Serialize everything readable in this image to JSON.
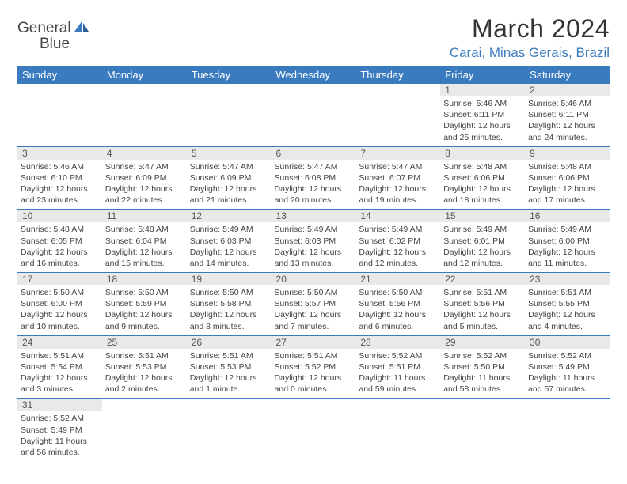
{
  "brand": {
    "name_a": "General",
    "name_b": "Blue"
  },
  "title": "March 2024",
  "location": "Carai, Minas Gerais, Brazil",
  "colors": {
    "header_bg": "#3a7bbf",
    "header_text": "#ffffff",
    "grid_line": "#3a7bbf",
    "daynum_bg": "#e9e9e9",
    "text": "#444444",
    "logo_blue": "#3a7bbf"
  },
  "day_headers": [
    "Sunday",
    "Monday",
    "Tuesday",
    "Wednesday",
    "Thursday",
    "Friday",
    "Saturday"
  ],
  "weeks": [
    [
      null,
      null,
      null,
      null,
      null,
      {
        "n": "1",
        "sr": "Sunrise: 5:46 AM",
        "ss": "Sunset: 6:11 PM",
        "dl": "Daylight: 12 hours and 25 minutes."
      },
      {
        "n": "2",
        "sr": "Sunrise: 5:46 AM",
        "ss": "Sunset: 6:11 PM",
        "dl": "Daylight: 12 hours and 24 minutes."
      }
    ],
    [
      {
        "n": "3",
        "sr": "Sunrise: 5:46 AM",
        "ss": "Sunset: 6:10 PM",
        "dl": "Daylight: 12 hours and 23 minutes."
      },
      {
        "n": "4",
        "sr": "Sunrise: 5:47 AM",
        "ss": "Sunset: 6:09 PM",
        "dl": "Daylight: 12 hours and 22 minutes."
      },
      {
        "n": "5",
        "sr": "Sunrise: 5:47 AM",
        "ss": "Sunset: 6:09 PM",
        "dl": "Daylight: 12 hours and 21 minutes."
      },
      {
        "n": "6",
        "sr": "Sunrise: 5:47 AM",
        "ss": "Sunset: 6:08 PM",
        "dl": "Daylight: 12 hours and 20 minutes."
      },
      {
        "n": "7",
        "sr": "Sunrise: 5:47 AM",
        "ss": "Sunset: 6:07 PM",
        "dl": "Daylight: 12 hours and 19 minutes."
      },
      {
        "n": "8",
        "sr": "Sunrise: 5:48 AM",
        "ss": "Sunset: 6:06 PM",
        "dl": "Daylight: 12 hours and 18 minutes."
      },
      {
        "n": "9",
        "sr": "Sunrise: 5:48 AM",
        "ss": "Sunset: 6:06 PM",
        "dl": "Daylight: 12 hours and 17 minutes."
      }
    ],
    [
      {
        "n": "10",
        "sr": "Sunrise: 5:48 AM",
        "ss": "Sunset: 6:05 PM",
        "dl": "Daylight: 12 hours and 16 minutes."
      },
      {
        "n": "11",
        "sr": "Sunrise: 5:48 AM",
        "ss": "Sunset: 6:04 PM",
        "dl": "Daylight: 12 hours and 15 minutes."
      },
      {
        "n": "12",
        "sr": "Sunrise: 5:49 AM",
        "ss": "Sunset: 6:03 PM",
        "dl": "Daylight: 12 hours and 14 minutes."
      },
      {
        "n": "13",
        "sr": "Sunrise: 5:49 AM",
        "ss": "Sunset: 6:03 PM",
        "dl": "Daylight: 12 hours and 13 minutes."
      },
      {
        "n": "14",
        "sr": "Sunrise: 5:49 AM",
        "ss": "Sunset: 6:02 PM",
        "dl": "Daylight: 12 hours and 12 minutes."
      },
      {
        "n": "15",
        "sr": "Sunrise: 5:49 AM",
        "ss": "Sunset: 6:01 PM",
        "dl": "Daylight: 12 hours and 12 minutes."
      },
      {
        "n": "16",
        "sr": "Sunrise: 5:49 AM",
        "ss": "Sunset: 6:00 PM",
        "dl": "Daylight: 12 hours and 11 minutes."
      }
    ],
    [
      {
        "n": "17",
        "sr": "Sunrise: 5:50 AM",
        "ss": "Sunset: 6:00 PM",
        "dl": "Daylight: 12 hours and 10 minutes."
      },
      {
        "n": "18",
        "sr": "Sunrise: 5:50 AM",
        "ss": "Sunset: 5:59 PM",
        "dl": "Daylight: 12 hours and 9 minutes."
      },
      {
        "n": "19",
        "sr": "Sunrise: 5:50 AM",
        "ss": "Sunset: 5:58 PM",
        "dl": "Daylight: 12 hours and 8 minutes."
      },
      {
        "n": "20",
        "sr": "Sunrise: 5:50 AM",
        "ss": "Sunset: 5:57 PM",
        "dl": "Daylight: 12 hours and 7 minutes."
      },
      {
        "n": "21",
        "sr": "Sunrise: 5:50 AM",
        "ss": "Sunset: 5:56 PM",
        "dl": "Daylight: 12 hours and 6 minutes."
      },
      {
        "n": "22",
        "sr": "Sunrise: 5:51 AM",
        "ss": "Sunset: 5:56 PM",
        "dl": "Daylight: 12 hours and 5 minutes."
      },
      {
        "n": "23",
        "sr": "Sunrise: 5:51 AM",
        "ss": "Sunset: 5:55 PM",
        "dl": "Daylight: 12 hours and 4 minutes."
      }
    ],
    [
      {
        "n": "24",
        "sr": "Sunrise: 5:51 AM",
        "ss": "Sunset: 5:54 PM",
        "dl": "Daylight: 12 hours and 3 minutes."
      },
      {
        "n": "25",
        "sr": "Sunrise: 5:51 AM",
        "ss": "Sunset: 5:53 PM",
        "dl": "Daylight: 12 hours and 2 minutes."
      },
      {
        "n": "26",
        "sr": "Sunrise: 5:51 AM",
        "ss": "Sunset: 5:53 PM",
        "dl": "Daylight: 12 hours and 1 minute."
      },
      {
        "n": "27",
        "sr": "Sunrise: 5:51 AM",
        "ss": "Sunset: 5:52 PM",
        "dl": "Daylight: 12 hours and 0 minutes."
      },
      {
        "n": "28",
        "sr": "Sunrise: 5:52 AM",
        "ss": "Sunset: 5:51 PM",
        "dl": "Daylight: 11 hours and 59 minutes."
      },
      {
        "n": "29",
        "sr": "Sunrise: 5:52 AM",
        "ss": "Sunset: 5:50 PM",
        "dl": "Daylight: 11 hours and 58 minutes."
      },
      {
        "n": "30",
        "sr": "Sunrise: 5:52 AM",
        "ss": "Sunset: 5:49 PM",
        "dl": "Daylight: 11 hours and 57 minutes."
      }
    ],
    [
      {
        "n": "31",
        "sr": "Sunrise: 5:52 AM",
        "ss": "Sunset: 5:49 PM",
        "dl": "Daylight: 11 hours and 56 minutes."
      },
      null,
      null,
      null,
      null,
      null,
      null
    ]
  ]
}
